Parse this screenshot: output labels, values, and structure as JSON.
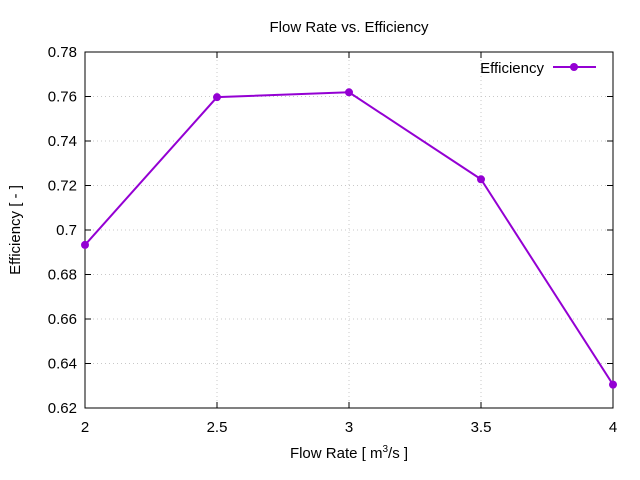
{
  "chart_data": {
    "type": "line",
    "title": "Flow Rate  vs. Efficiency",
    "xlabel_prefix": "Flow Rate [ m",
    "xlabel_sup": "3",
    "xlabel_suffix": "/s ]",
    "ylabel": "Efficiency [ - ]",
    "xlim": [
      2,
      4
    ],
    "ylim": [
      0.62,
      0.78
    ],
    "xticks": [
      2,
      2.5,
      3,
      3.5,
      4
    ],
    "xtick_labels": [
      "2",
      "2.5",
      "3",
      "3.5",
      "4"
    ],
    "yticks": [
      0.62,
      0.64,
      0.66,
      0.68,
      0.7,
      0.72,
      0.74,
      0.76,
      0.78
    ],
    "ytick_labels": [
      "0.62",
      "0.64",
      "0.66",
      "0.68",
      "0.7",
      "0.72",
      "0.74",
      "0.76",
      "0.78"
    ],
    "grid": true,
    "legend_position": "top-right",
    "series": [
      {
        "name": "Efficiency",
        "color": "#9400d3",
        "x": [
          2,
          2.5,
          3,
          3.5,
          4
        ],
        "y": [
          0.6933,
          0.7597,
          0.7619,
          0.7228,
          0.6305
        ]
      }
    ]
  }
}
